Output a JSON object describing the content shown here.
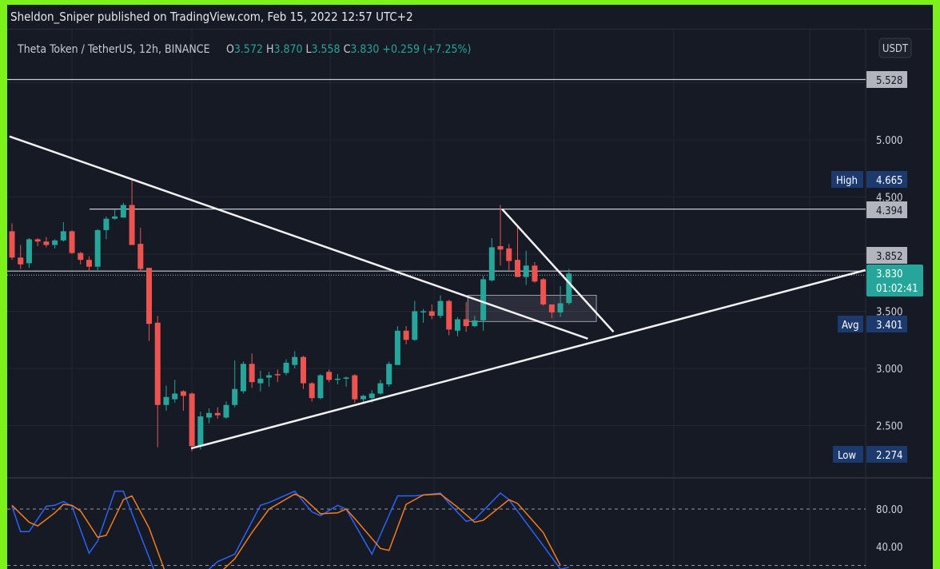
{
  "header": {
    "publisher_line": "Sheldon_Sniper published on TradingView.com, Feb 15, 2022 12:57 UTC+2"
  },
  "legend": {
    "symbol": "Theta Token / TetherUS, 12h, BINANCE",
    "o_label": "O",
    "o_value": "3.572",
    "h_label": "H",
    "h_value": "3.870",
    "l_label": "L",
    "l_value": "3.558",
    "c_label": "C",
    "c_value": "3.830",
    "change": "+0.259 (+7.25%)"
  },
  "currency_button": "USDT",
  "colors": {
    "up": "#26a69a",
    "down": "#ef5350",
    "border": "#7cf21a",
    "background": "#161a25",
    "stoch_k": "#2962ff",
    "stoch_d": "#f57c1f"
  },
  "labels": {
    "line_5528": "5.528",
    "high_title": "High",
    "high_value": "4.665",
    "line_4394": "4.394",
    "line_3852": "3.852",
    "last_price": "3.830",
    "countdown": "01:02:41",
    "avg_title": "Avg",
    "avg_value": "3.401",
    "low_title": "Low",
    "low_value": "2.274"
  },
  "chart_data": [
    {
      "type": "candlestick",
      "title": "",
      "ylabel": "USDT",
      "ylim": [
        2.1,
        5.75
      ],
      "y_ticks": [
        "5.000",
        "4.500",
        "3.500",
        "3.000",
        "2.500"
      ],
      "grid": true,
      "ohlc": [
        [
          4.2,
          4.27,
          3.95,
          3.97
        ],
        [
          3.97,
          4.08,
          3.87,
          3.91
        ],
        [
          3.92,
          4.14,
          3.88,
          4.13
        ],
        [
          4.13,
          4.14,
          4.07,
          4.11
        ],
        [
          4.11,
          4.15,
          4.06,
          4.08
        ],
        [
          4.08,
          4.13,
          4.05,
          4.12
        ],
        [
          4.12,
          4.28,
          4.11,
          4.2
        ],
        [
          4.2,
          4.21,
          4.0,
          4.01
        ],
        [
          4.01,
          4.02,
          3.91,
          3.95
        ],
        [
          3.95,
          3.98,
          3.85,
          3.89
        ],
        [
          3.89,
          4.22,
          3.86,
          4.21
        ],
        [
          4.21,
          4.33,
          4.13,
          4.31
        ],
        [
          4.31,
          4.39,
          4.3,
          4.33
        ],
        [
          4.32,
          4.45,
          4.32,
          4.43
        ],
        [
          4.43,
          4.665,
          4.08,
          4.08
        ],
        [
          4.09,
          4.23,
          3.85,
          3.87
        ],
        [
          3.88,
          3.88,
          3.24,
          3.39
        ],
        [
          3.4,
          3.46,
          2.31,
          2.68
        ],
        [
          2.68,
          2.85,
          2.63,
          2.75
        ],
        [
          2.73,
          2.9,
          2.7,
          2.78
        ],
        [
          2.8,
          2.81,
          2.63,
          2.76
        ],
        [
          2.78,
          2.79,
          2.274,
          2.32
        ],
        [
          2.32,
          2.62,
          2.29,
          2.58
        ],
        [
          2.57,
          2.65,
          2.52,
          2.61
        ],
        [
          2.61,
          2.66,
          2.56,
          2.59
        ],
        [
          2.57,
          2.71,
          2.56,
          2.68
        ],
        [
          2.68,
          3.07,
          2.66,
          2.82
        ],
        [
          2.8,
          3.06,
          2.78,
          3.04
        ],
        [
          3.04,
          3.13,
          2.83,
          2.88
        ],
        [
          2.87,
          2.98,
          2.8,
          2.91
        ],
        [
          2.92,
          2.97,
          2.84,
          2.94
        ],
        [
          2.95,
          2.99,
          2.88,
          2.94
        ],
        [
          2.96,
          3.08,
          2.94,
          3.05
        ],
        [
          3.03,
          3.15,
          3.0,
          3.1
        ],
        [
          3.1,
          3.11,
          2.82,
          2.87
        ],
        [
          2.87,
          2.88,
          2.71,
          2.74
        ],
        [
          2.74,
          2.95,
          2.73,
          2.94
        ],
        [
          2.97,
          2.99,
          2.88,
          2.9
        ],
        [
          2.9,
          2.95,
          2.86,
          2.91
        ],
        [
          2.91,
          2.93,
          2.84,
          2.92
        ],
        [
          2.94,
          2.95,
          2.7,
          2.73
        ],
        [
          2.73,
          2.77,
          2.7,
          2.76
        ],
        [
          2.74,
          2.81,
          2.7,
          2.78
        ],
        [
          2.78,
          2.9,
          2.77,
          2.87
        ],
        [
          2.86,
          3.06,
          2.84,
          3.04
        ],
        [
          3.03,
          3.37,
          3.03,
          3.33
        ],
        [
          3.33,
          3.37,
          3.21,
          3.25
        ],
        [
          3.25,
          3.59,
          3.24,
          3.5
        ],
        [
          3.49,
          3.52,
          3.4,
          3.5
        ],
        [
          3.5,
          3.56,
          3.43,
          3.46
        ],
        [
          3.46,
          3.64,
          3.44,
          3.59
        ],
        [
          3.59,
          3.6,
          3.29,
          3.34
        ],
        [
          3.33,
          3.45,
          3.28,
          3.43
        ],
        [
          3.43,
          3.58,
          3.32,
          3.37
        ],
        [
          3.37,
          3.46,
          3.36,
          3.42
        ],
        [
          3.42,
          3.81,
          3.33,
          3.78
        ],
        [
          3.77,
          4.14,
          3.76,
          4.06
        ],
        [
          4.07,
          4.43,
          3.9,
          4.04
        ],
        [
          4.05,
          4.09,
          3.86,
          3.94
        ],
        [
          3.95,
          4.24,
          3.8,
          3.8
        ],
        [
          3.8,
          4.03,
          3.73,
          3.9
        ],
        [
          3.9,
          3.93,
          3.75,
          3.76
        ],
        [
          3.78,
          3.79,
          3.55,
          3.56
        ],
        [
          3.56,
          3.56,
          3.44,
          3.49
        ],
        [
          3.49,
          3.72,
          3.45,
          3.57
        ],
        [
          3.572,
          3.87,
          3.558,
          3.83
        ]
      ],
      "horizontal_lines": [
        5.528,
        4.394,
        3.852
      ],
      "last_price": 3.83,
      "trendlines": [
        {
          "from": [
            -0.3,
            5.03
          ],
          "to": [
            67.2,
            3.26
          ]
        },
        {
          "from": [
            20.9,
            2.3
          ],
          "to": [
            99.6,
            3.86
          ]
        },
        {
          "from": [
            57.2,
            4.394
          ],
          "to": [
            70.2,
            3.32
          ]
        }
      ],
      "rectangle": {
        "from_index": 53.2,
        "to_index": 68.2,
        "top": 3.64,
        "bottom": 3.41
      }
    },
    {
      "type": "line",
      "title": "",
      "ylim": [
        0,
        100
      ],
      "y_ticks": [
        "80.00",
        "40.00"
      ],
      "bands": [
        80,
        20
      ],
      "series": [
        {
          "values": [
            [
              0,
              83
            ],
            [
              1,
              56
            ],
            [
              2,
              56
            ],
            [
              4,
              83
            ],
            [
              5,
              84
            ],
            [
              6,
              88
            ],
            [
              7,
              83
            ],
            [
              9,
              33
            ],
            [
              10,
              46
            ],
            [
              12,
              99
            ],
            [
              13,
              99
            ],
            [
              17,
              5
            ],
            [
              20,
              5
            ],
            [
              23,
              16
            ],
            [
              24,
              24
            ],
            [
              26,
              32
            ],
            [
              29,
              84
            ],
            [
              30,
              87
            ],
            [
              33,
              99
            ],
            [
              35,
              77
            ],
            [
              36,
              73
            ],
            [
              38,
              84
            ],
            [
              39,
              80
            ],
            [
              42,
              32
            ],
            [
              45,
              94
            ],
            [
              47,
              94
            ],
            [
              50,
              97
            ],
            [
              51,
              86
            ],
            [
              53,
              67
            ],
            [
              54,
              69
            ],
            [
              57,
              97
            ],
            [
              58,
              90
            ],
            [
              62,
              41
            ],
            [
              64,
              16
            ],
            [
              65,
              18
            ]
          ]
        },
        {
          "values": [
            [
              0,
              84
            ],
            [
              2,
              66
            ],
            [
              3,
              62
            ],
            [
              5,
              76
            ],
            [
              6,
              85
            ],
            [
              7,
              84
            ],
            [
              8,
              78
            ],
            [
              10,
              50
            ],
            [
              11,
              52
            ],
            [
              13,
              90
            ],
            [
              14,
              94
            ],
            [
              16,
              60
            ],
            [
              18,
              10
            ],
            [
              24,
              10
            ],
            [
              26,
              27
            ],
            [
              28,
              55
            ],
            [
              30,
              80
            ],
            [
              33,
              96
            ],
            [
              34,
              92
            ],
            [
              36,
              75
            ],
            [
              38,
              76
            ],
            [
              39,
              80
            ],
            [
              40,
              70
            ],
            [
              43,
              38
            ],
            [
              44,
              36
            ],
            [
              46,
              85
            ],
            [
              48,
              95
            ],
            [
              50,
              96
            ],
            [
              52,
              82
            ],
            [
              54,
              66
            ],
            [
              55,
              68
            ],
            [
              58,
              90
            ],
            [
              59,
              86
            ],
            [
              62,
              55
            ],
            [
              64,
              20
            ]
          ]
        }
      ]
    }
  ]
}
